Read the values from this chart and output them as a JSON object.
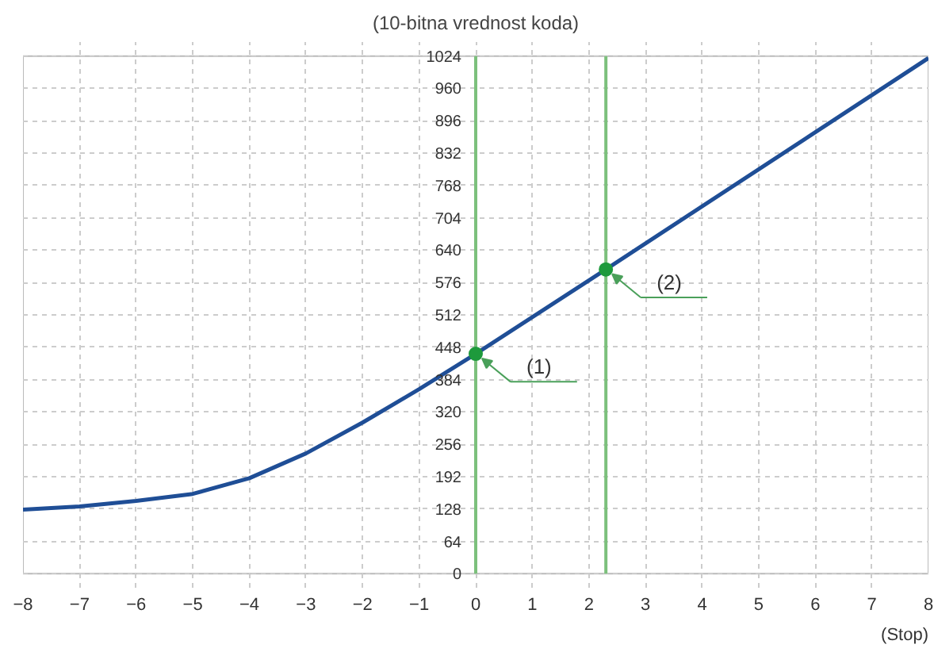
{
  "chart_data": {
    "type": "line",
    "title": "(10-bitna vrednost koda)",
    "xlabel": "(Stop)",
    "x": [
      -8,
      -7,
      -6,
      -5,
      -4,
      -3,
      -2,
      -1,
      0,
      2.3,
      8
    ],
    "series": [
      {
        "color": "#1f4e96",
        "values": [
          127,
          133,
          144,
          158,
          189,
          238,
          299,
          365,
          435,
          602,
          1020
        ],
        "marker": "none"
      },
      {
        "type": "scatter",
        "color": "#1e9a3c",
        "x": [
          0,
          2.3
        ],
        "values": [
          435,
          602
        ],
        "marker": "circle"
      }
    ],
    "xlim": [
      -8,
      8
    ],
    "xticks": [
      -8,
      -7,
      -6,
      -5,
      -4,
      -3,
      -2,
      -1,
      0,
      1,
      2,
      3,
      4,
      5,
      6,
      7,
      8
    ],
    "ylim": [
      0,
      1024
    ],
    "yticks": [
      0,
      64,
      128,
      192,
      256,
      320,
      384,
      448,
      512,
      576,
      640,
      704,
      768,
      832,
      896,
      960,
      1024
    ],
    "grid": true,
    "ref_lines": [
      {
        "axis": "x",
        "value": 0,
        "color": "#7cc07c"
      },
      {
        "axis": "x",
        "value": 2.3,
        "color": "#7cc07c"
      }
    ],
    "annotations": [
      {
        "text": "(1)",
        "x": 0,
        "y": 435
      },
      {
        "text": "(2)",
        "x": 2.3,
        "y": 602
      }
    ]
  }
}
